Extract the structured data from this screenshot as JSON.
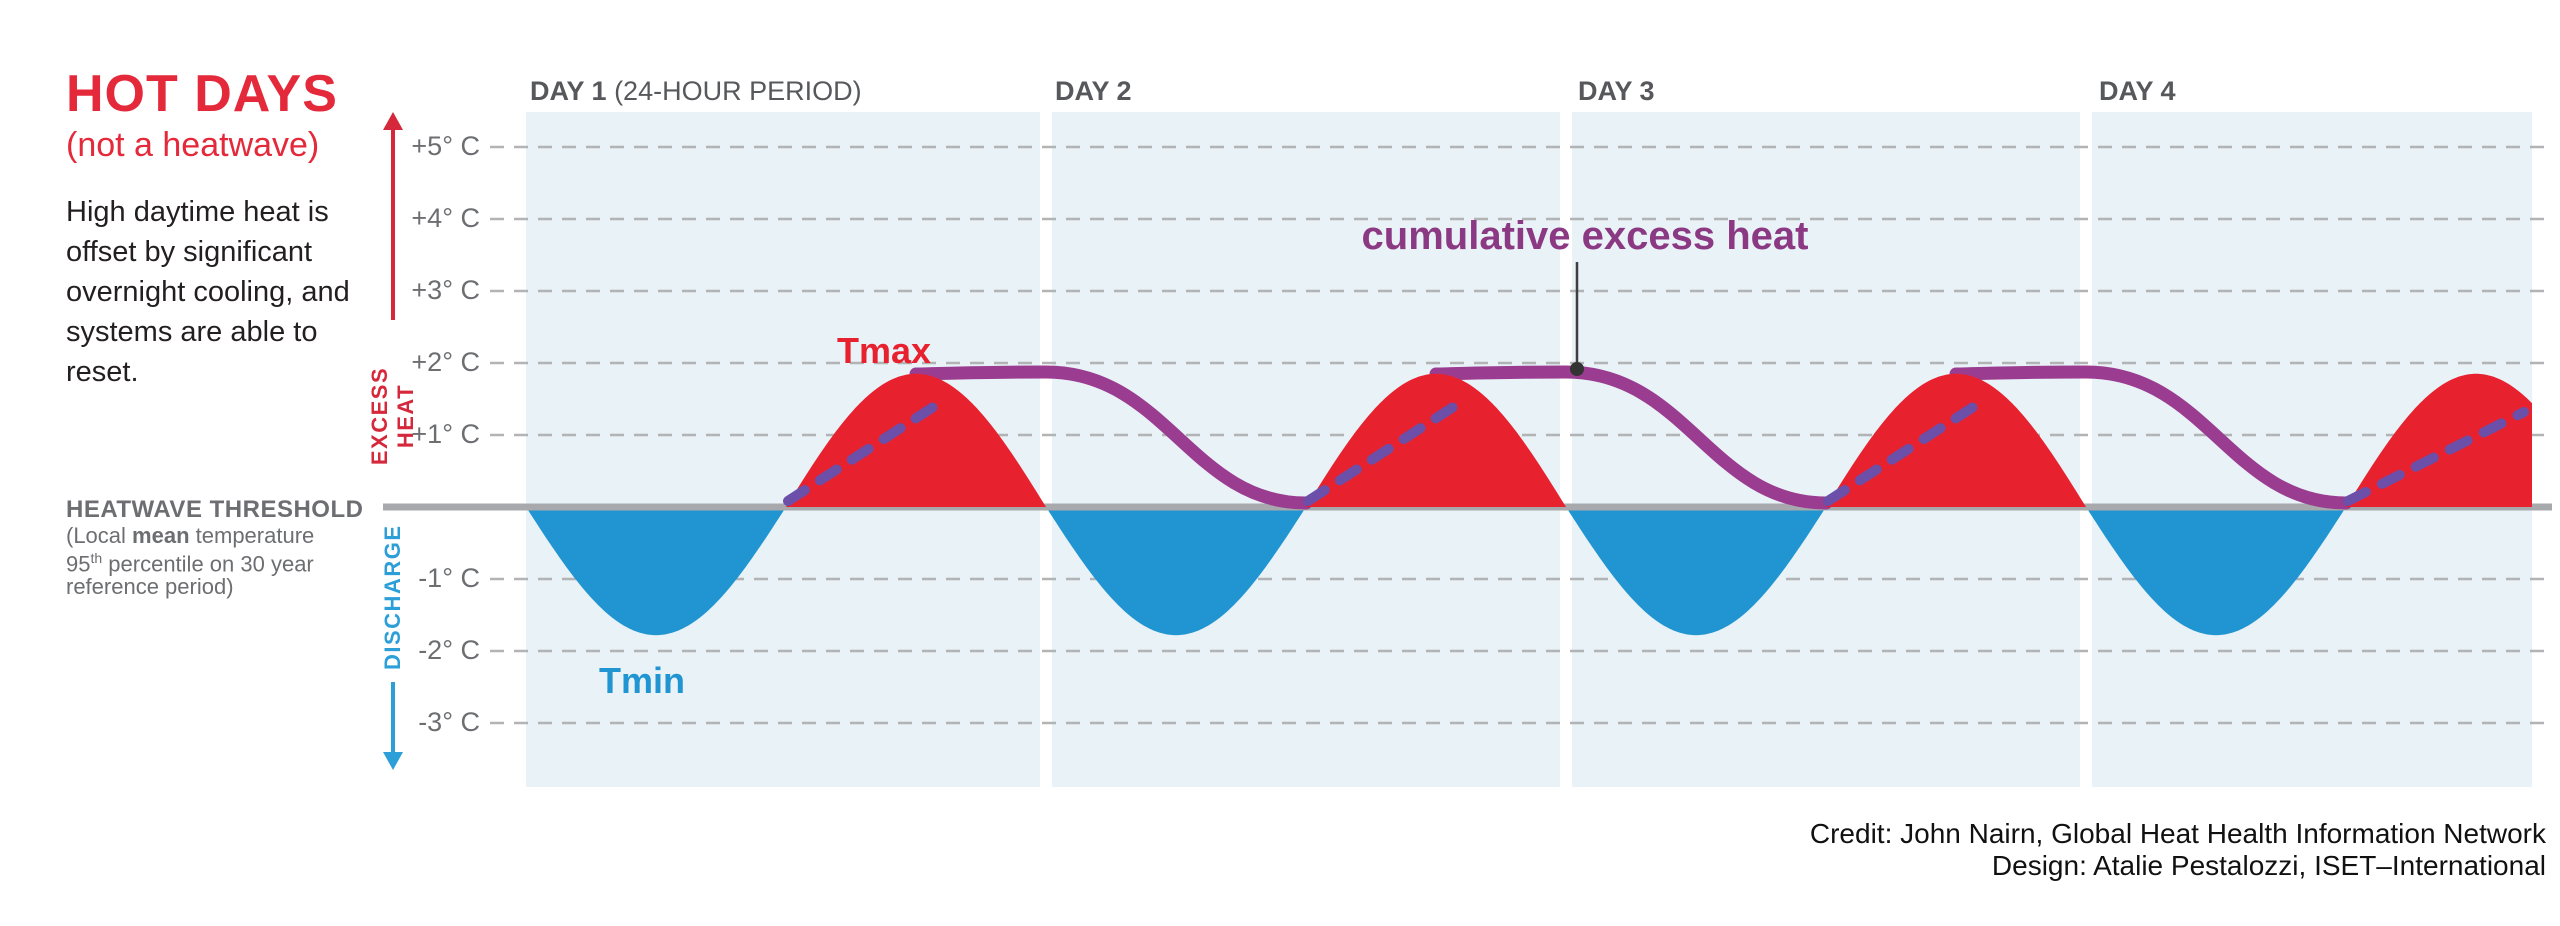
{
  "panel": {
    "title": "HOT DAYS",
    "subtitle": "(not a heatwave)",
    "description": "High daytime heat is offset by significant overnight cooling, and systems are able to reset.",
    "threshold_heading": "HEATWAVE THRESHOLD",
    "threshold_note": {
      "p1": "(Local ",
      "bold": "mean",
      "p2": " temperature 95",
      "sup": "th",
      "p3": " percentile on 30 year reference period)"
    }
  },
  "credits": {
    "line1": "Credit: John Nairn, Global Heat Health Information Network",
    "line2": "Design: Atalie Pestalozzi, ISET–International"
  },
  "chart_data": {
    "type": "area",
    "title": "HOT DAYS (not a heatwave)",
    "x_axis": {
      "unit": "days",
      "days": [
        {
          "label": "DAY 1",
          "sublabel": " (24-HOUR PERIOD)"
        },
        {
          "label": "DAY 2",
          "sublabel": ""
        },
        {
          "label": "DAY 3",
          "sublabel": ""
        },
        {
          "label": "DAY 4",
          "sublabel": ""
        }
      ]
    },
    "y_axis": {
      "unit": "degrees C relative to heatwave threshold",
      "ticks": [
        {
          "value": 5,
          "label": "+5° C"
        },
        {
          "value": 4,
          "label": "+4° C"
        },
        {
          "value": 3,
          "label": "+3° C"
        },
        {
          "value": 2,
          "label": "+2° C"
        },
        {
          "value": 1,
          "label": "+1° C"
        },
        {
          "value": -1,
          "label": "-1° C"
        },
        {
          "value": -2,
          "label": "-2° C"
        },
        {
          "value": -3,
          "label": "-3° C"
        }
      ],
      "positive_region_label": "EXCESS HEAT",
      "negative_region_label": "DISCHARGE"
    },
    "threshold": {
      "value": 0,
      "label": "HEATWAVE THRESHOLD"
    },
    "grid": "dashed horizontal gridlines, light-blue day bands",
    "legend": "none",
    "series": [
      {
        "name": "daily temperature wave",
        "type": "area",
        "period_days": 1,
        "tmax_c": 1.85,
        "tmin_c": -1.78,
        "tmax_label": "Tmax",
        "tmin_label": "Tmin",
        "above_threshold_color": "#e8212f",
        "below_threshold_color": "#2095d2"
      },
      {
        "name": "cumulative excess heat",
        "type": "line",
        "label": "cumulative excess heat",
        "peak_c": 2.0,
        "trough_c": 0.0,
        "peaks_at_day_boundaries": [
          1,
          2,
          3
        ],
        "color": "#9a3d91",
        "accumulation_dash_color": "#6b4fa8"
      }
    ],
    "colors": {
      "day_band_bg": "#e9f2f7",
      "gridline": "#b1b3b5",
      "threshold_line": "#a7a9ac",
      "day_label": "#57585b",
      "tick_label": "#6d6e71",
      "pointer": "#3f3f3f"
    }
  }
}
